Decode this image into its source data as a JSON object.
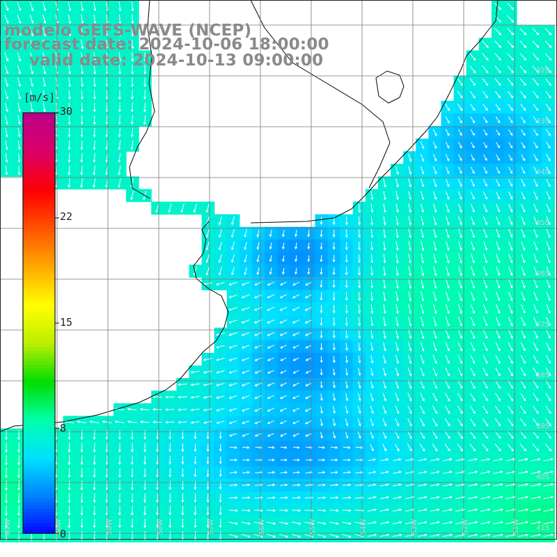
{
  "title": {
    "model": "modelo GEFS-WAVE (NCEP)",
    "forecast": "forecast date: 2024-10-06 18:00:00",
    "valid": "valid date: 2024-10-13 09:00:00"
  },
  "colorbar": {
    "unit": "[m/s]",
    "ticks": [
      "30",
      "22",
      "15",
      "8",
      "0"
    ],
    "colors": [
      "#0000ff",
      "#0080ff",
      "#00e0ff",
      "#00ffaa",
      "#00dd00",
      "#bbee00",
      "#ffff00",
      "#ffaa00",
      "#ff5500",
      "#ff0000",
      "#dd0066",
      "#bb0088"
    ]
  },
  "lat_labels": [
    "32S",
    "33S",
    "34S",
    "35S",
    "36S",
    "37S",
    "38S",
    "39S",
    "40S",
    "41S"
  ],
  "lon_labels": [
    "61W",
    "60W",
    "59W",
    "58W",
    "57W",
    "56W",
    "55W",
    "54W",
    "53W",
    "52W",
    "51W"
  ],
  "colors": {
    "land": "#ffffff",
    "coast": "#000000",
    "grid": "#777777",
    "arrow": "#ffffff"
  }
}
